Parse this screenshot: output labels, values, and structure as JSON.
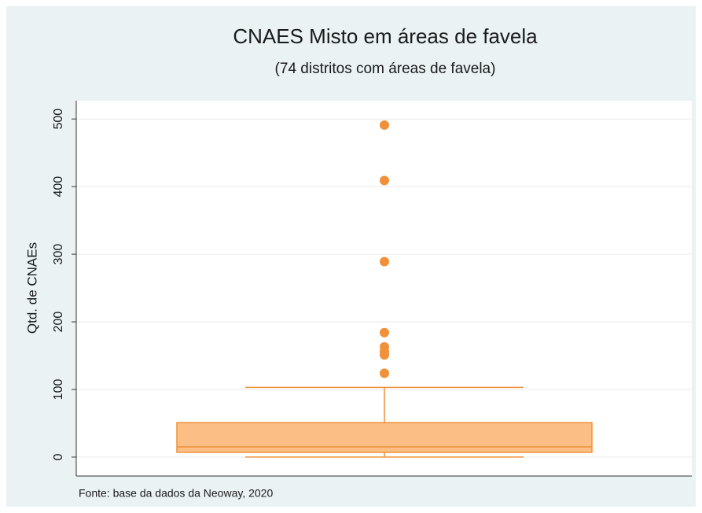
{
  "chart_data": {
    "type": "box",
    "title": "CNAES Misto em áreas de favela",
    "subtitle": "(74 distritos com áreas de favela)",
    "y_label": "Qtd. de CNAEs",
    "source": "Fonte: base da dados da Neoway, 2020",
    "min": 0,
    "q1": 7,
    "median": 15,
    "q3": 51,
    "max": 103,
    "outliers": [
      491,
      409,
      289,
      184,
      163,
      156,
      151,
      124
    ],
    "color": "#f0913a",
    "box_fill": "#fbbf86",
    "ylim": [
      -28,
      527
    ],
    "yticks": [
      0,
      100,
      200,
      300,
      400,
      500
    ],
    "grid": true
  }
}
